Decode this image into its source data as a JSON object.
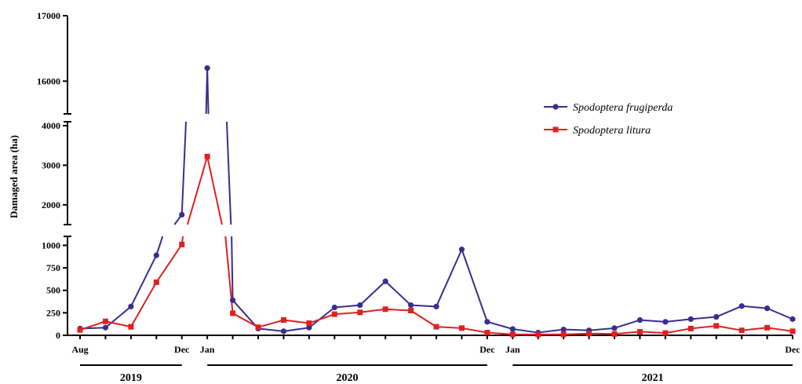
{
  "chart_data": {
    "type": "line",
    "ylabel": "Damaged area (ha)",
    "y_axis_breaks": [
      [
        1100,
        1500
      ],
      [
        4200,
        15500
      ]
    ],
    "y_segments": [
      {
        "range": [
          0,
          1100
        ],
        "ticks": [
          0,
          250,
          500,
          750,
          1000
        ]
      },
      {
        "range": [
          1500,
          4100
        ],
        "ticks": [
          2000,
          3000,
          4000
        ]
      },
      {
        "range": [
          15500,
          17000
        ],
        "ticks": [
          16000,
          17000
        ]
      }
    ],
    "x": [
      "2019-08",
      "2019-09",
      "2019-10",
      "2019-11",
      "2019-12",
      "2020-01",
      "2020-02",
      "2020-03",
      "2020-04",
      "2020-05",
      "2020-06",
      "2020-07",
      "2020-08",
      "2020-09",
      "2020-10",
      "2020-11",
      "2020-12",
      "2021-01",
      "2021-02",
      "2021-03",
      "2021-04",
      "2021-05",
      "2021-06",
      "2021-07",
      "2021-08",
      "2021-09",
      "2021-10",
      "2021-11",
      "2021-12"
    ],
    "x_tick_labels": [
      {
        "index": 0,
        "label": "Aug"
      },
      {
        "index": 4,
        "label": "Dec"
      },
      {
        "index": 5,
        "label": "Jan"
      },
      {
        "index": 16,
        "label": "Dec"
      },
      {
        "index": 17,
        "label": "Jan"
      },
      {
        "index": 28,
        "label": "Dec"
      }
    ],
    "years": [
      {
        "label": "2019",
        "from": 0,
        "to": 4
      },
      {
        "label": "2020",
        "from": 5,
        "to": 16
      },
      {
        "label": "2021",
        "from": 17,
        "to": 28
      }
    ],
    "legend": "right",
    "series": [
      {
        "name": "Spodoptera frugiperda",
        "color": "#3a2d8f",
        "marker": "circle",
        "values": [
          75,
          85,
          320,
          890,
          1750,
          16200,
          390,
          75,
          45,
          85,
          310,
          335,
          600,
          335,
          320,
          955,
          150,
          70,
          30,
          65,
          55,
          80,
          170,
          150,
          180,
          205,
          325,
          300,
          180
        ]
      },
      {
        "name": "Spodoptera litura",
        "color": "#e02020",
        "marker": "square",
        "values": [
          60,
          155,
          95,
          590,
          1010,
          3220,
          245,
          90,
          170,
          135,
          235,
          255,
          290,
          275,
          95,
          80,
          30,
          10,
          10,
          10,
          20,
          15,
          40,
          25,
          75,
          105,
          55,
          85,
          45
        ]
      }
    ]
  }
}
